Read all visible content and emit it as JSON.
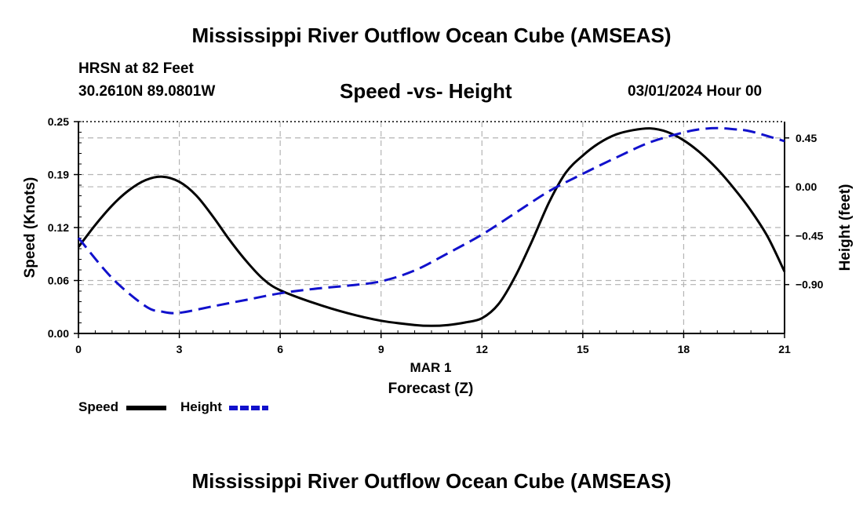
{
  "header": {
    "title": "Mississippi River Outflow Ocean Cube (AMSEAS)",
    "station": "HRSN at 82 Feet",
    "coordinates": "30.2610N  89.0801W",
    "subtitle": "Speed -vs- Height",
    "datetime": "03/01/2024 Hour 00"
  },
  "footer": {
    "title": "Mississippi River Outflow Ocean Cube (AMSEAS)"
  },
  "legend": {
    "speed_label": "Speed",
    "height_label": "Height"
  },
  "colors": {
    "speed": "#000000",
    "height": "#1111cc",
    "grid": "#b4b4b4"
  },
  "chart_data": {
    "type": "line",
    "title": "Speed -vs- Height",
    "xlabel": "Forecast (Z)",
    "xlabel_date": "MAR 1",
    "ylabel": "Speed (Knots)",
    "y2label": "Height (feet)",
    "xlim": [
      0,
      21
    ],
    "ylim": [
      0,
      0.25
    ],
    "y2lim": [
      -1.35,
      0.6
    ],
    "x_ticks": [
      0,
      3,
      6,
      9,
      12,
      15,
      18,
      21
    ],
    "x_tick_labels": [
      "0",
      "3",
      "6",
      "9",
      "12",
      "15",
      "18",
      "21"
    ],
    "y_ticks": [
      0,
      0.0625,
      0.125,
      0.1875,
      0.25
    ],
    "y_tick_labels": [
      "0.00",
      "0.06",
      "0.12",
      "0.19",
      "0.25"
    ],
    "y2_ticks": [
      -0.9,
      -0.45,
      0.0,
      0.45
    ],
    "y2_tick_labels": [
      "−0.90",
      "−0.45",
      "0.00",
      "0.45"
    ],
    "grid": true,
    "legend_position": "bottom-left",
    "series": [
      {
        "name": "Speed",
        "axis": "left",
        "style": "solid",
        "x": [
          0,
          0.5,
          1,
          1.5,
          2,
          2.5,
          3,
          3.5,
          4,
          4.5,
          5,
          5.5,
          6,
          7,
          8,
          9,
          10,
          10.5,
          11,
          11.5,
          12,
          12.5,
          13,
          13.5,
          14,
          14.5,
          15,
          15.5,
          16,
          16.5,
          17,
          17.5,
          18,
          18.5,
          19,
          19.5,
          20,
          20.5,
          21
        ],
        "values": [
          0.102,
          0.128,
          0.151,
          0.169,
          0.181,
          0.185,
          0.179,
          0.163,
          0.138,
          0.11,
          0.085,
          0.064,
          0.051,
          0.036,
          0.024,
          0.015,
          0.01,
          0.009,
          0.01,
          0.013,
          0.018,
          0.035,
          0.068,
          0.11,
          0.155,
          0.19,
          0.21,
          0.225,
          0.235,
          0.24,
          0.242,
          0.238,
          0.228,
          0.213,
          0.194,
          0.171,
          0.145,
          0.114,
          0.073
        ]
      },
      {
        "name": "Height",
        "axis": "right",
        "style": "dashed",
        "x": [
          0,
          1,
          2,
          2.5,
          3,
          4,
          5,
          6,
          7,
          8,
          9,
          10,
          11,
          12,
          13,
          14,
          15,
          16,
          17,
          18,
          18.5,
          19,
          19.5,
          20,
          21
        ],
        "values": [
          -0.47,
          -0.84,
          -1.1,
          -1.15,
          -1.16,
          -1.1,
          -1.04,
          -0.98,
          -0.94,
          -0.91,
          -0.87,
          -0.77,
          -0.61,
          -0.44,
          -0.24,
          -0.04,
          0.12,
          0.27,
          0.41,
          0.5,
          0.53,
          0.54,
          0.53,
          0.51,
          0.42
        ]
      }
    ]
  }
}
